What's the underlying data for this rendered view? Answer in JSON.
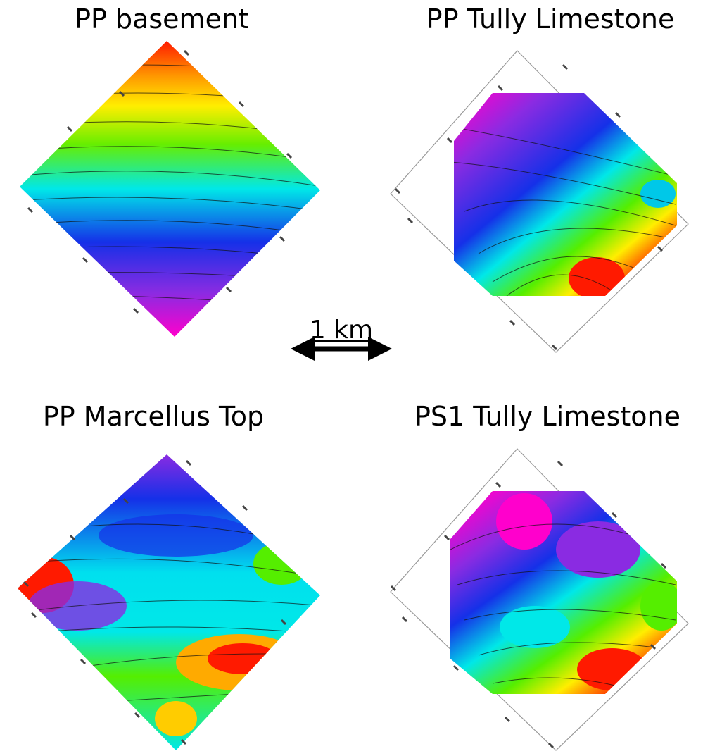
{
  "panels": [
    {
      "title": "PP basement"
    },
    {
      "title": "PP Tully Limestone"
    },
    {
      "title": "PP Marcellus Top"
    },
    {
      "title": "PS1 Tully Limestone"
    }
  ],
  "scale_bar": {
    "label": "1 km"
  }
}
